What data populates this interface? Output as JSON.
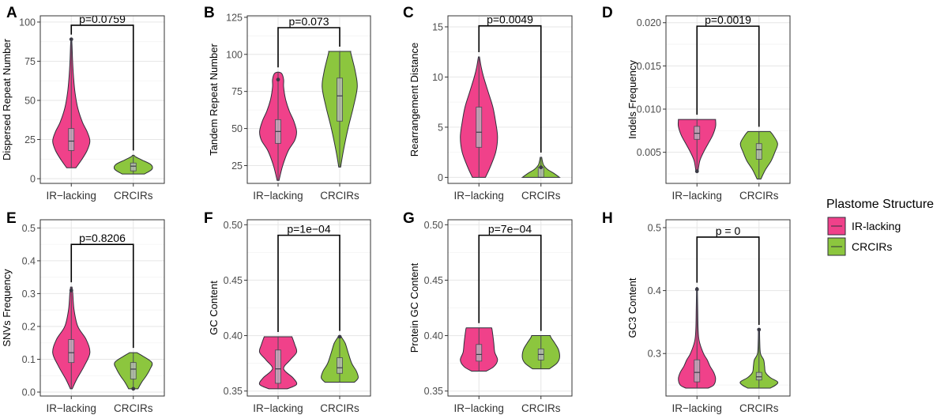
{
  "colors": {
    "ir_lacking": "#F0418A",
    "crcirs": "#8CC63E",
    "outline": "#2e2e3a",
    "grid": "#ececec",
    "frame": "#333333"
  },
  "legend": {
    "title": "Plastome Structure",
    "items": [
      {
        "label": "IR-lacking",
        "color": "#F0418A"
      },
      {
        "label": "CRCIRs",
        "color": "#8CC63E"
      }
    ]
  },
  "chart_data": [
    {
      "letter": "A",
      "type": "violin",
      "ylabel": "Dispersed Repeat Number",
      "ylim": [
        -3,
        104
      ],
      "yticks": [
        0,
        25,
        50,
        75,
        100
      ],
      "ytick_labels": [
        "0",
        "25",
        "50",
        "75",
        "100"
      ],
      "categories": [
        "IR−lacking",
        "CRCIRs"
      ],
      "p_label": "p=0.0759",
      "bracket_y": 98,
      "series": [
        {
          "name": "IR-lacking",
          "min": 7,
          "max": 89,
          "q1": 18,
          "median": 24,
          "q3": 32,
          "outliers": [
            89
          ],
          "profile": [
            [
              7,
              0.25
            ],
            [
              12,
              0.55
            ],
            [
              18,
              0.85
            ],
            [
              24,
              1.0
            ],
            [
              30,
              0.85
            ],
            [
              36,
              0.6
            ],
            [
              45,
              0.35
            ],
            [
              55,
              0.2
            ],
            [
              65,
              0.12
            ],
            [
              75,
              0.07
            ],
            [
              85,
              0.04
            ],
            [
              89,
              0.02
            ]
          ]
        },
        {
          "name": "CRCIRs",
          "min": 3,
          "max": 15,
          "q1": 5,
          "median": 8,
          "q3": 10,
          "outliers": [],
          "profile": [
            [
              3,
              0.6
            ],
            [
              6,
              1.0
            ],
            [
              9,
              0.95
            ],
            [
              12,
              0.45
            ],
            [
              14,
              0.12
            ],
            [
              15,
              0.04
            ]
          ]
        }
      ]
    },
    {
      "letter": "B",
      "type": "violin",
      "ylabel": "Tandem Repeat Number",
      "ylim": [
        13,
        126
      ],
      "yticks": [
        25,
        50,
        75,
        100,
        125
      ],
      "ytick_labels": [
        "25",
        "50",
        "75",
        "100",
        "125"
      ],
      "categories": [
        "IR−lacking",
        "CRCIRs"
      ],
      "p_label": "p=0.073",
      "bracket_y": 118,
      "series": [
        {
          "name": "IR-lacking",
          "min": 15,
          "max": 88,
          "q1": 40,
          "median": 48,
          "q3": 56,
          "outliers": [
            83
          ],
          "profile": [
            [
              15,
              0.05
            ],
            [
              25,
              0.25
            ],
            [
              35,
              0.55
            ],
            [
              42,
              0.9
            ],
            [
              48,
              1.0
            ],
            [
              55,
              0.85
            ],
            [
              62,
              0.6
            ],
            [
              70,
              0.4
            ],
            [
              78,
              0.3
            ],
            [
              83,
              0.3
            ],
            [
              87,
              0.2
            ],
            [
              88,
              0.05
            ]
          ]
        },
        {
          "name": "CRCIRs",
          "min": 24,
          "max": 102,
          "q1": 55,
          "median": 72,
          "q3": 84,
          "outliers": [],
          "profile": [
            [
              24,
              0.05
            ],
            [
              35,
              0.2
            ],
            [
              50,
              0.45
            ],
            [
              65,
              0.75
            ],
            [
              78,
              0.95
            ],
            [
              88,
              0.85
            ],
            [
              96,
              0.7
            ],
            [
              101,
              0.6
            ],
            [
              102,
              0.6
            ]
          ]
        }
      ]
    },
    {
      "letter": "C",
      "type": "violin",
      "ylabel": "Rearrangement Distance",
      "ylim": [
        -0.6,
        16.1
      ],
      "yticks": [
        0,
        5,
        10,
        15
      ],
      "ytick_labels": [
        "0",
        "5",
        "10",
        "15"
      ],
      "categories": [
        "IR−lacking",
        "CRCIRs"
      ],
      "p_label": "p=0.0049",
      "bracket_y": 15.1,
      "series": [
        {
          "name": "IR-lacking",
          "min": 0,
          "max": 12,
          "q1": 3,
          "median": 4.5,
          "q3": 7,
          "outliers": [],
          "profile": [
            [
              0,
              0.35
            ],
            [
              1,
              0.6
            ],
            [
              2.5,
              0.9
            ],
            [
              4,
              1.0
            ],
            [
              5.5,
              0.9
            ],
            [
              7,
              0.75
            ],
            [
              8.5,
              0.5
            ],
            [
              10,
              0.25
            ],
            [
              11,
              0.12
            ],
            [
              12,
              0.03
            ]
          ]
        },
        {
          "name": "CRCIRs",
          "min": 0,
          "max": 2,
          "q1": 0,
          "median": 0,
          "q3": 1,
          "outliers": [
            1
          ],
          "profile": [
            [
              0,
              1.0
            ],
            [
              0.4,
              0.7
            ],
            [
              0.8,
              0.35
            ],
            [
              1.2,
              0.15
            ],
            [
              1.6,
              0.08
            ],
            [
              2,
              0.04
            ]
          ]
        }
      ]
    },
    {
      "letter": "D",
      "type": "violin",
      "ylabel": "Indels Frequency",
      "ylim": [
        0.0014,
        0.0208
      ],
      "yticks": [
        0.005,
        0.01,
        0.015,
        0.02
      ],
      "ytick_labels": [
        "0.005",
        "0.010",
        "0.015",
        "0.020"
      ],
      "categories": [
        "IR−lacking",
        "CRCIRs"
      ],
      "p_label": "p=0.0019",
      "bracket_y": 0.0196,
      "series": [
        {
          "name": "IR-lacking",
          "min": 0.0027,
          "max": 0.0088,
          "q1": 0.0065,
          "median": 0.0072,
          "q3": 0.008,
          "outliers": [
            0.0028
          ],
          "profile": [
            [
              0.0027,
              0.05
            ],
            [
              0.004,
              0.15
            ],
            [
              0.005,
              0.35
            ],
            [
              0.006,
              0.6
            ],
            [
              0.007,
              0.85
            ],
            [
              0.008,
              1.0
            ],
            [
              0.0087,
              1.0
            ],
            [
              0.0088,
              1.0
            ]
          ]
        },
        {
          "name": "CRCIRs",
          "min": 0.0019,
          "max": 0.0074,
          "q1": 0.0042,
          "median": 0.0053,
          "q3": 0.006,
          "outliers": [],
          "profile": [
            [
              0.0019,
              0.1
            ],
            [
              0.003,
              0.35
            ],
            [
              0.004,
              0.65
            ],
            [
              0.005,
              0.85
            ],
            [
              0.006,
              1.0
            ],
            [
              0.007,
              0.75
            ],
            [
              0.0074,
              0.6
            ]
          ]
        }
      ]
    },
    {
      "letter": "E",
      "type": "violin",
      "ylabel": "SNVs Frequency",
      "ylim": [
        -0.012,
        0.525
      ],
      "yticks": [
        0,
        0.1,
        0.2,
        0.3,
        0.4,
        0.5
      ],
      "ytick_labels": [
        "0.0",
        "0.1",
        "0.2",
        "0.3",
        "0.4",
        "0.5"
      ],
      "categories": [
        "IR−lacking",
        "CRCIRs"
      ],
      "p_label": "p=0.8206",
      "bracket_y": 0.45,
      "series": [
        {
          "name": "IR-lacking",
          "min": 0.01,
          "max": 0.32,
          "q1": 0.09,
          "median": 0.12,
          "q3": 0.16,
          "outliers": [
            0.31
          ],
          "profile": [
            [
              0.01,
              0.05
            ],
            [
              0.04,
              0.3
            ],
            [
              0.08,
              0.7
            ],
            [
              0.12,
              1.0
            ],
            [
              0.16,
              0.8
            ],
            [
              0.2,
              0.35
            ],
            [
              0.25,
              0.15
            ],
            [
              0.3,
              0.08
            ],
            [
              0.32,
              0.04
            ]
          ]
        },
        {
          "name": "CRCIRs",
          "min": 0.01,
          "max": 0.12,
          "q1": 0.04,
          "median": 0.07,
          "q3": 0.09,
          "outliers": [
            0.01
          ],
          "profile": [
            [
              0.01,
              0.25
            ],
            [
              0.03,
              0.45
            ],
            [
              0.05,
              0.7
            ],
            [
              0.07,
              0.9
            ],
            [
              0.09,
              1.0
            ],
            [
              0.11,
              0.5
            ],
            [
              0.12,
              0.2
            ]
          ]
        }
      ]
    },
    {
      "letter": "F",
      "type": "violin",
      "ylabel": "GC Content",
      "ylim": [
        0.3455,
        0.5045
      ],
      "yticks": [
        0.35,
        0.4,
        0.45,
        0.5
      ],
      "ytick_labels": [
        "0.35",
        "0.40",
        "0.45",
        "0.50"
      ],
      "categories": [
        "IR−lacking",
        "CRCIRs"
      ],
      "p_label": "p=1e−04",
      "bracket_y": 0.4905,
      "series": [
        {
          "name": "IR-lacking",
          "min": 0.352,
          "max": 0.399,
          "q1": 0.357,
          "median": 0.37,
          "q3": 0.387,
          "outliers": [],
          "profile": [
            [
              0.352,
              0.5
            ],
            [
              0.356,
              1.0
            ],
            [
              0.362,
              0.8
            ],
            [
              0.37,
              0.3
            ],
            [
              0.378,
              0.65
            ],
            [
              0.385,
              1.0
            ],
            [
              0.392,
              0.9
            ],
            [
              0.399,
              0.75
            ]
          ]
        },
        {
          "name": "CRCIRs",
          "min": 0.358,
          "max": 0.4,
          "q1": 0.366,
          "median": 0.371,
          "q3": 0.38,
          "outliers": [
            0.399
          ],
          "profile": [
            [
              0.358,
              0.8
            ],
            [
              0.362,
              1.0
            ],
            [
              0.368,
              0.9
            ],
            [
              0.375,
              0.65
            ],
            [
              0.385,
              0.45
            ],
            [
              0.393,
              0.3
            ],
            [
              0.398,
              0.12
            ],
            [
              0.4,
              0.04
            ]
          ]
        }
      ]
    },
    {
      "letter": "G",
      "type": "violin",
      "ylabel": "Protein GC Content",
      "ylim": [
        0.3455,
        0.5045
      ],
      "yticks": [
        0.35,
        0.4,
        0.45,
        0.5
      ],
      "ytick_labels": [
        "0.35",
        "0.40",
        "0.45",
        "0.50"
      ],
      "categories": [
        "IR−lacking",
        "CRCIRs"
      ],
      "p_label": "p=7e−04",
      "bracket_y": 0.4905,
      "series": [
        {
          "name": "IR-lacking",
          "min": 0.368,
          "max": 0.407,
          "q1": 0.377,
          "median": 0.383,
          "q3": 0.392,
          "outliers": [],
          "profile": [
            [
              0.368,
              0.4
            ],
            [
              0.372,
              0.8
            ],
            [
              0.378,
              1.0
            ],
            [
              0.385,
              0.85
            ],
            [
              0.393,
              0.8
            ],
            [
              0.4,
              0.75
            ],
            [
              0.406,
              0.7
            ],
            [
              0.407,
              0.68
            ]
          ]
        },
        {
          "name": "CRCIRs",
          "min": 0.37,
          "max": 0.4,
          "q1": 0.378,
          "median": 0.383,
          "q3": 0.388,
          "outliers": [],
          "profile": [
            [
              0.37,
              0.45
            ],
            [
              0.375,
              0.85
            ],
            [
              0.38,
              1.0
            ],
            [
              0.387,
              0.95
            ],
            [
              0.393,
              0.75
            ],
            [
              0.398,
              0.55
            ],
            [
              0.4,
              0.5
            ]
          ]
        }
      ]
    },
    {
      "letter": "H",
      "type": "violin",
      "ylabel": "GC3 Content",
      "ylim": [
        0.2325,
        0.5125
      ],
      "yticks": [
        0.3,
        0.4,
        0.5
      ],
      "ytick_labels": [
        "0.3",
        "0.4",
        "0.5"
      ],
      "categories": [
        "IR−lacking",
        "CRCIRs"
      ],
      "p_label": "p = 0",
      "bracket_y": 0.485,
      "series": [
        {
          "name": "IR-lacking",
          "min": 0.245,
          "max": 0.405,
          "q1": 0.255,
          "median": 0.27,
          "q3": 0.29,
          "outliers": [
            0.402
          ],
          "profile": [
            [
              0.245,
              0.6
            ],
            [
              0.25,
              0.9
            ],
            [
              0.26,
              1.0
            ],
            [
              0.27,
              0.9
            ],
            [
              0.28,
              0.7
            ],
            [
              0.29,
              0.55
            ],
            [
              0.3,
              0.35
            ],
            [
              0.32,
              0.12
            ],
            [
              0.34,
              0.06
            ],
            [
              0.37,
              0.04
            ],
            [
              0.405,
              0.02
            ]
          ]
        },
        {
          "name": "CRCIRs",
          "min": 0.245,
          "max": 0.338,
          "q1": 0.258,
          "median": 0.263,
          "q3": 0.27,
          "outliers": [
            0.338
          ],
          "profile": [
            [
              0.245,
              0.6
            ],
            [
              0.25,
              0.9
            ],
            [
              0.255,
              1.0
            ],
            [
              0.262,
              0.6
            ],
            [
              0.27,
              0.35
            ],
            [
              0.28,
              0.3
            ],
            [
              0.29,
              0.25
            ],
            [
              0.3,
              0.08
            ],
            [
              0.32,
              0.04
            ],
            [
              0.338,
              0.03
            ]
          ]
        }
      ]
    }
  ]
}
